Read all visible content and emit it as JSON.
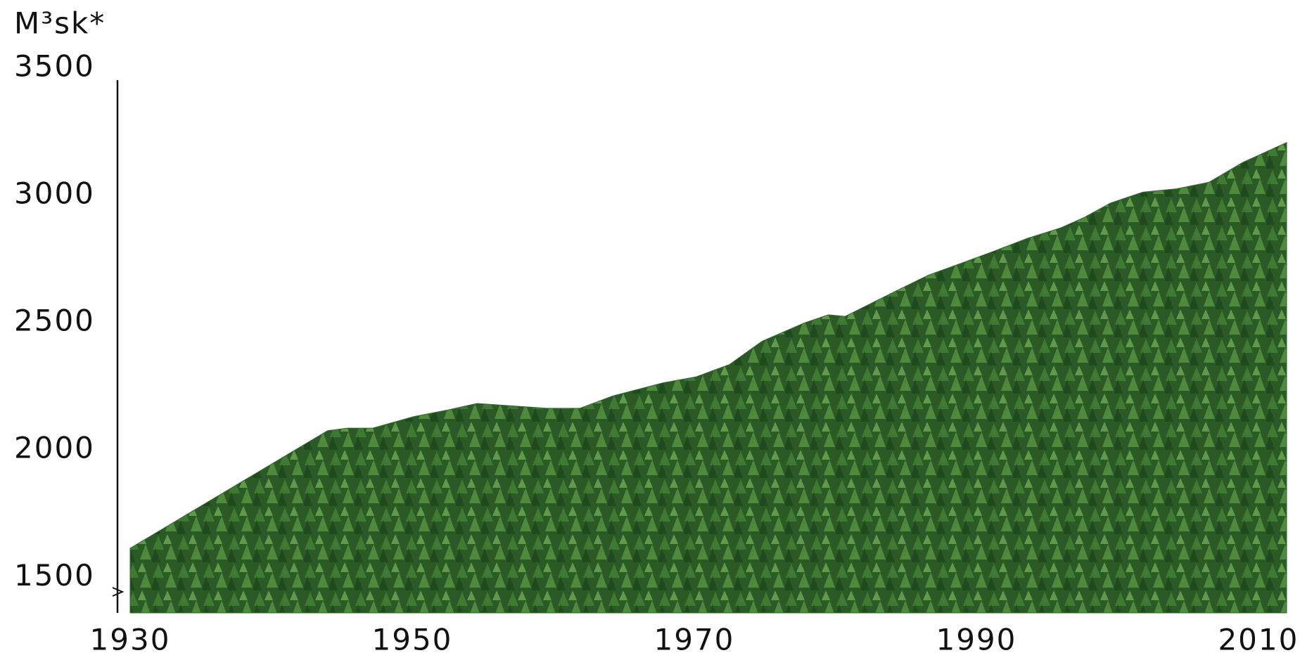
{
  "chart_data": {
    "type": "area",
    "y_label": "M³sk*",
    "x": [
      1930.0,
      1944.0,
      1945.4,
      1947.2,
      1950.1,
      1952.5,
      1954.6,
      1957.2,
      1959.5,
      1961.9,
      1964.2,
      1967.8,
      1970.1,
      1972.5,
      1974.8,
      1977.8,
      1979.5,
      1980.7,
      1984.2,
      1986.6,
      1988.9,
      1991.3,
      1993.6,
      1996.0,
      1997.7,
      1999.5,
      2001.8,
      2004.2,
      2006.5,
      2008.9,
      2012.0
    ],
    "values": [
      1614,
      2076,
      2086,
      2086,
      2131,
      2157,
      2183,
      2173,
      2164,
      2164,
      2212,
      2264,
      2287,
      2336,
      2427,
      2499,
      2531,
      2525,
      2622,
      2687,
      2733,
      2782,
      2831,
      2873,
      2915,
      2970,
      3013,
      3026,
      3052,
      3130,
      3208
    ],
    "color": "#2f6b2a",
    "xlim": [
      1930,
      2012
    ],
    "xticks": [
      1930,
      1950,
      1970,
      1990,
      2010
    ],
    "ylim": [
      1360,
      3500
    ],
    "yticks": [
      1500,
      2000,
      2500,
      3000,
      3500
    ],
    "grid": false
  }
}
